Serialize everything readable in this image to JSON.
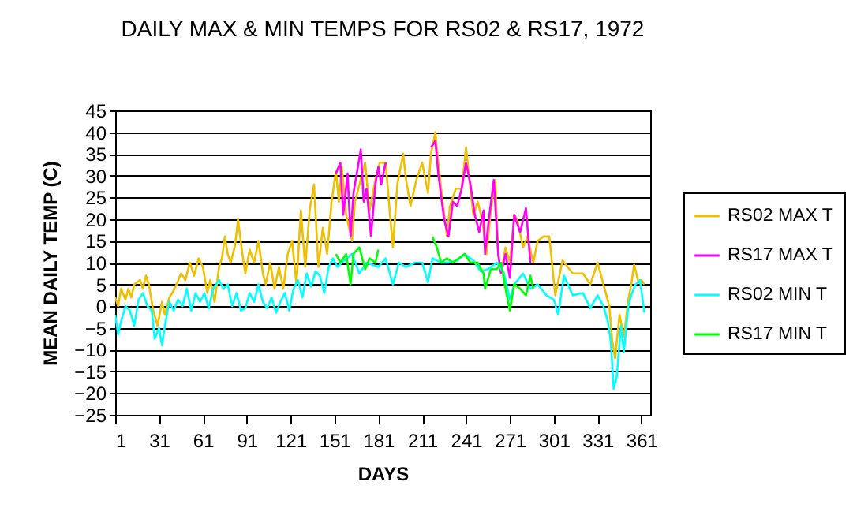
{
  "chart_data": {
    "type": "line",
    "title": "DAILY MAX & MIN TEMPS FOR RS02 & RS17, 1972",
    "xlabel": "DAYS",
    "ylabel": "MEAN DAILY TEMP (C)",
    "xlim": [
      1,
      367
    ],
    "xticks": [
      1,
      31,
      61,
      91,
      121,
      151,
      181,
      211,
      241,
      271,
      301,
      331,
      361
    ],
    "ylim": [
      -25,
      45
    ],
    "yticks": [
      -25,
      -20,
      -15,
      -10,
      -5,
      0,
      5,
      10,
      15,
      20,
      25,
      30,
      35,
      40,
      45
    ],
    "grid": "y",
    "legend": "right",
    "marker": "none",
    "line_style": "solid",
    "series": [
      {
        "name": "RS02 MAX T",
        "color": "#f0c000",
        "x": [
          1,
          3,
          5,
          8,
          10,
          12,
          14,
          18,
          20,
          22,
          24,
          27,
          30,
          33,
          35,
          38,
          40,
          43,
          46,
          49,
          52,
          55,
          58,
          61,
          64,
          66,
          69,
          72,
          74,
          76,
          78,
          80,
          83,
          85,
          88,
          90,
          93,
          96,
          99,
          102,
          104,
          107,
          110,
          113,
          116,
          119,
          122,
          125,
          128,
          131,
          134,
          137,
          140,
          143,
          146,
          149,
          152,
          154,
          156,
          159,
          163,
          165,
          172,
          175,
          179,
          182,
          186,
          189,
          191,
          194,
          198,
          200,
          203,
          207,
          211,
          215,
          217,
          220,
          222,
          225,
          228,
          230,
          234,
          238,
          241,
          243,
          246,
          249,
          252,
          255,
          258,
          261,
          263,
          265,
          268,
          271,
          274,
          276,
          280,
          283,
          287,
          290,
          294,
          298,
          302,
          307,
          314,
          321,
          326,
          331,
          335,
          339,
          341,
          343,
          346,
          349,
          352,
          354,
          356,
          359,
          361,
          363
        ],
        "values": [
          2,
          0,
          4,
          1.5,
          4,
          2,
          5,
          6,
          4,
          7,
          5,
          -1,
          -4.5,
          1,
          -2,
          2,
          3,
          5,
          7.5,
          6,
          10,
          7,
          11,
          9,
          3,
          6,
          1,
          9,
          11,
          16,
          12,
          10,
          14,
          20,
          12,
          7.5,
          13,
          10,
          15,
          7.5,
          5,
          10,
          4,
          9,
          4,
          12,
          15,
          5,
          22,
          9,
          22,
          28,
          9,
          18,
          12,
          24,
          31,
          24,
          32,
          21,
          15,
          24,
          33,
          22,
          29,
          33,
          33,
          21,
          13.5,
          28,
          35,
          29,
          23,
          29,
          33,
          26,
          35,
          40,
          33,
          24,
          16,
          23,
          27,
          27,
          36.5,
          30,
          21,
          24,
          20,
          12,
          22,
          29,
          12,
          7.5,
          13.5,
          10,
          21,
          20,
          13.5,
          16,
          10,
          15,
          16,
          16,
          2.5,
          10.5,
          7.5,
          7.5,
          5,
          10,
          5,
          0,
          -8,
          -12,
          -2,
          -7,
          1.5,
          5,
          9.5,
          5.5,
          6,
          5
        ]
      },
      {
        "name": "RS17 MAX T",
        "color": "#ff00ff",
        "x": [
          152,
          155,
          157,
          160,
          162,
          164,
          167,
          169,
          171,
          173,
          176,
          179,
          181,
          183,
          186,
          200,
          217,
          220,
          222,
          226,
          229,
          232,
          235,
          238,
          241,
          244,
          247,
          250,
          253,
          254,
          257,
          260,
          263,
          265,
          268,
          271,
          274,
          278,
          282,
          285
        ],
        "values": [
          30.5,
          33,
          21,
          30.5,
          16,
          26,
          32,
          36,
          24,
          27,
          16,
          28,
          32,
          28,
          33,
          null,
          36.5,
          38,
          30.5,
          20,
          16,
          24,
          23,
          27,
          33,
          28,
          21,
          17,
          22,
          12,
          21,
          29,
          12,
          7.5,
          12,
          6.5,
          21,
          17,
          22.5,
          10
        ]
      },
      {
        "name": "RS02 MIN T",
        "color": "#00ffff",
        "x": [
          1,
          3,
          5,
          8,
          11,
          14,
          17,
          20,
          23,
          26,
          28,
          31,
          33,
          35,
          38,
          41,
          44,
          47,
          50,
          53,
          56,
          59,
          62,
          65,
          68,
          72,
          75,
          78,
          81,
          84,
          87,
          90,
          93,
          96,
          99,
          102,
          105,
          108,
          111,
          114,
          117,
          120,
          123,
          126,
          129,
          132,
          135,
          138,
          141,
          144,
          147,
          150,
          153,
          156,
          163,
          168,
          173,
          181,
          186,
          191,
          195,
          200,
          206,
          211,
          215,
          218,
          224,
          229,
          235,
          240,
          246,
          251,
          256,
          262,
          267,
          271,
          274,
          280,
          285,
          290,
          296,
          301,
          304,
          308,
          314,
          321,
          326,
          331,
          335,
          338,
          340,
          342,
          344,
          347,
          349,
          352,
          354,
          357,
          360,
          363
        ],
        "values": [
          -2,
          -6.5,
          -3.5,
          0,
          -1,
          -4.5,
          1.5,
          3,
          0,
          -1,
          -7.5,
          -5,
          -9,
          -4.5,
          1,
          -1,
          1.5,
          0,
          4,
          -1,
          3,
          1,
          3,
          -0.5,
          4,
          6,
          4,
          5,
          0,
          3,
          -1,
          -0.5,
          3,
          1,
          5,
          1,
          -0.5,
          2,
          -1.5,
          1,
          3,
          -1,
          4,
          6,
          2,
          7.5,
          4.5,
          8,
          7,
          3,
          9,
          11,
          9,
          10,
          12,
          7.5,
          10,
          9,
          11,
          5,
          10,
          9,
          10,
          10,
          5.5,
          11,
          10,
          10,
          10.5,
          12,
          10.5,
          8,
          8.5,
          10,
          7.5,
          1.5,
          5,
          7.5,
          4,
          5,
          2.5,
          1.5,
          -2,
          7,
          2.5,
          3,
          -0.5,
          2.5,
          0,
          -3.5,
          -8,
          -19,
          -16.5,
          -4.5,
          -10.5,
          0,
          2.5,
          5,
          6,
          -1.5
        ]
      },
      {
        "name": "RS17 MIN T",
        "color": "#00ff00",
        "x": [
          152,
          155,
          159,
          162,
          164,
          168,
          172,
          175,
          179,
          181,
          200,
          218,
          221,
          224,
          228,
          232,
          236,
          240,
          244,
          249,
          253,
          254,
          258,
          262,
          265,
          268,
          271,
          274,
          278,
          282,
          285,
          287
        ],
        "values": [
          12,
          10,
          12,
          5,
          12,
          13.5,
          8.5,
          11,
          10,
          13,
          null,
          16,
          13.5,
          10,
          11,
          10,
          11,
          12,
          10,
          10,
          7.5,
          4,
          8.5,
          8.5,
          10,
          4,
          -1,
          5,
          4,
          2.5,
          7,
          4
        ]
      }
    ]
  }
}
